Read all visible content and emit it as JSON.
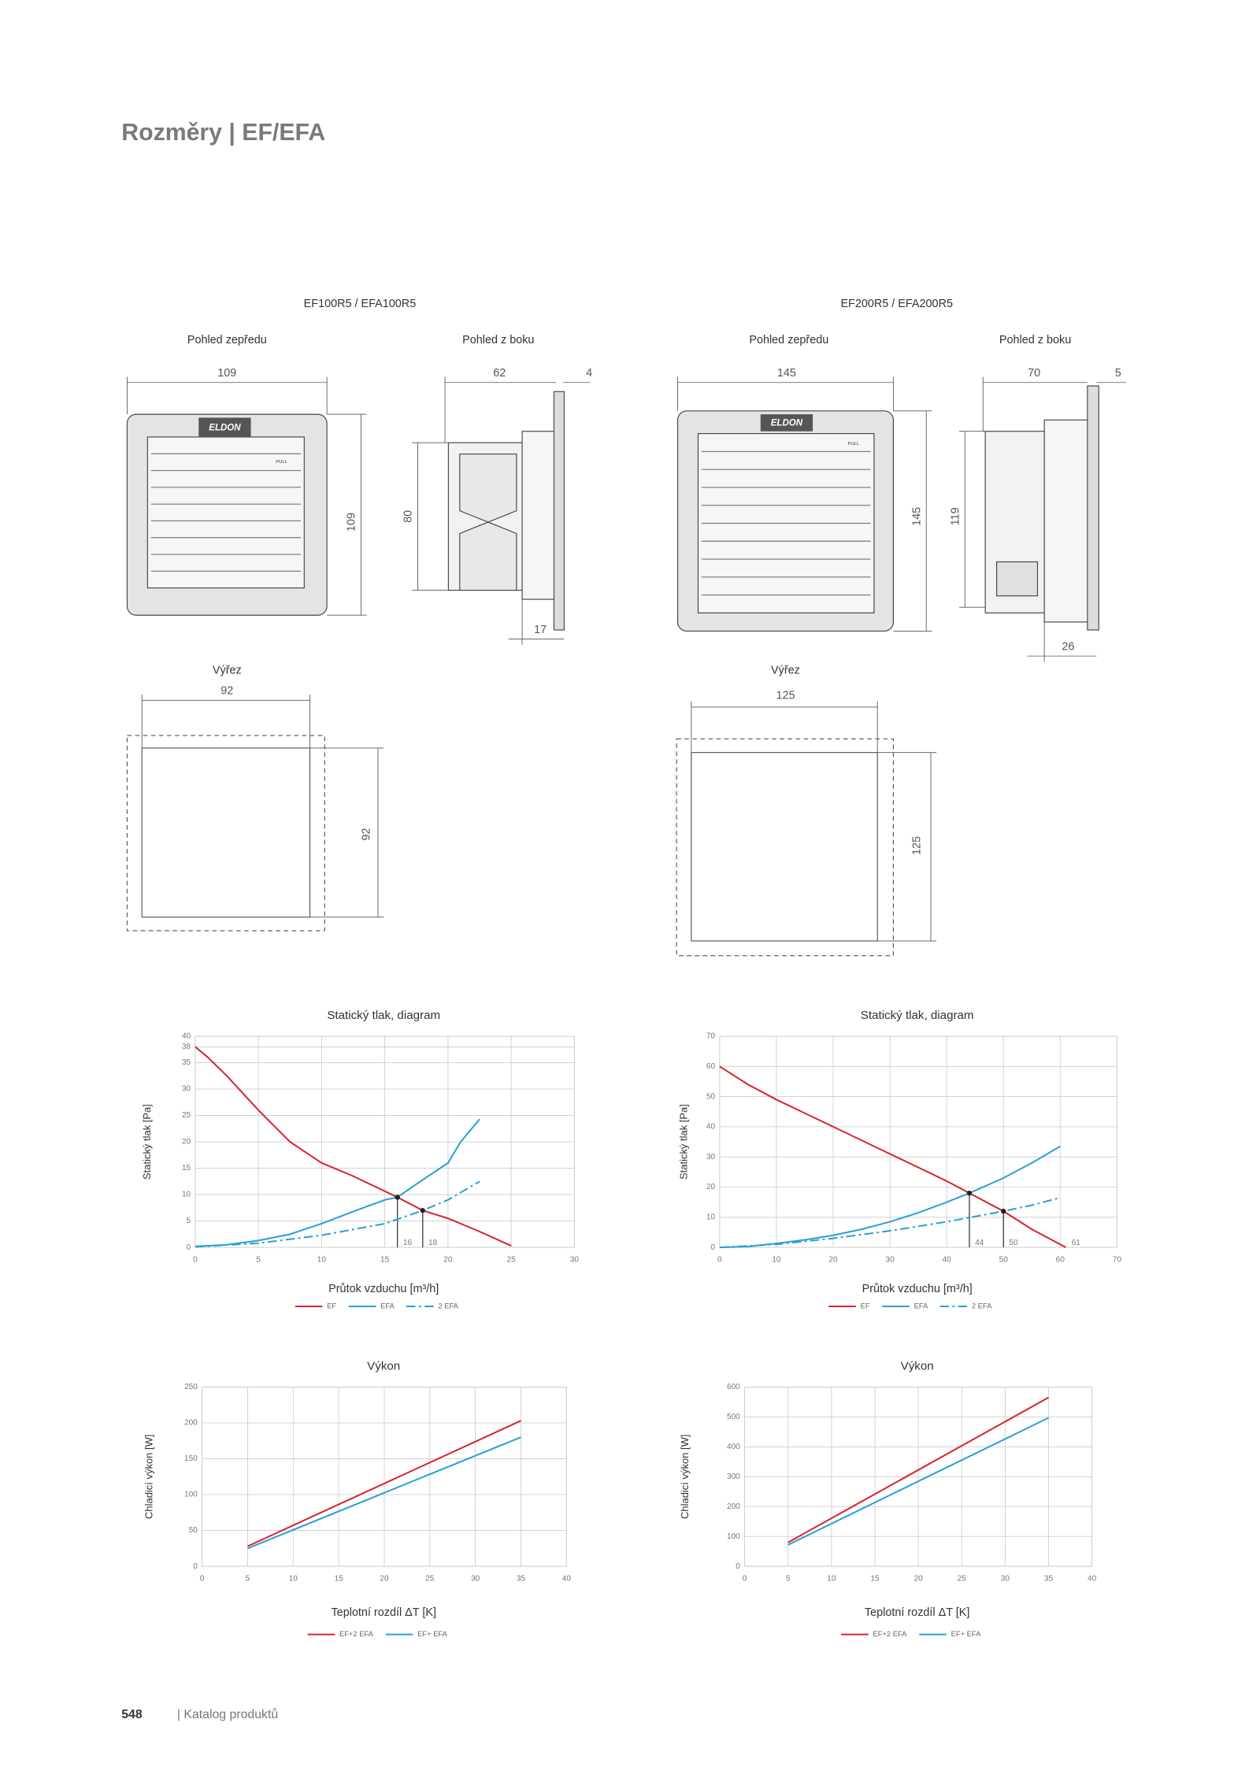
{
  "title": "Rozměry | EF/EFA",
  "products": [
    {
      "name": "EF100R5 / EFA100R5",
      "front_label": "Pohled zepředu",
      "side_label": "Pohled z boku",
      "logo": "ELDON",
      "pull": "PULL",
      "front_width": "109",
      "front_height": "109",
      "side_depth": "62",
      "side_flange": "4",
      "side_height": "80",
      "side_bottom": "17",
      "cutout_label": "Výřez",
      "cutout_width": "92",
      "cutout_height": "92"
    },
    {
      "name": "EF200R5 / EFA200R5",
      "front_label": "Pohled zepředu",
      "side_label": "Pohled z boku",
      "logo": "ELDON",
      "pull": "PULL",
      "front_width": "145",
      "front_height": "145",
      "side_depth": "70",
      "side_flange": "5",
      "side_height": "119",
      "side_bottom": "26",
      "cutout_label": "Výřez",
      "cutout_width": "125",
      "cutout_height": "125"
    }
  ],
  "chart_data": [
    {
      "type": "line",
      "title": "Statický tlak, diagram",
      "x_label": "Průtok vzduchu [m³/h]",
      "y_label": "Statický tlak [Pa]",
      "xlim": [
        0,
        30
      ],
      "xticks": [
        0,
        5,
        10,
        15,
        20,
        25,
        30
      ],
      "ylim": [
        0,
        40
      ],
      "yticks": [
        0,
        5,
        10,
        15,
        20,
        25,
        30,
        35,
        38,
        40
      ],
      "grid": true,
      "legend": "bottom",
      "series": [
        {
          "name": "EF",
          "color": "#d7242e",
          "style": "solid",
          "x": [
            0,
            1,
            2.5,
            5,
            7.5,
            10,
            12.5,
            16,
            18,
            20,
            22.5,
            25
          ],
          "values": [
            38,
            36,
            32.5,
            26,
            20,
            16,
            13.5,
            9.5,
            7,
            5.5,
            3,
            0.3
          ]
        },
        {
          "name": "EFA",
          "color": "#2a9fd8",
          "style": "solid",
          "x": [
            0,
            2.5,
            5,
            7.5,
            10,
            12.5,
            15,
            16,
            17.5,
            20,
            21,
            22.5
          ],
          "values": [
            0.2,
            0.5,
            1.3,
            2.5,
            4.5,
            6.8,
            9,
            9.5,
            12,
            16,
            20,
            24.3
          ]
        },
        {
          "name": "2 EFA",
          "color": "#2a9fd8",
          "style": "dashdot",
          "x": [
            0,
            5,
            10,
            15,
            18,
            20,
            22.5
          ],
          "values": [
            0.1,
            0.8,
            2.3,
            4.5,
            7,
            9,
            12.5
          ]
        }
      ],
      "intersections": [
        {
          "x": 16,
          "y": 9.5
        },
        {
          "x": 18,
          "y": 7
        }
      ]
    },
    {
      "type": "line",
      "title": "Statický tlak, diagram",
      "x_label": "Průtok vzduchu [m³/h]",
      "y_label": "Statický tlak [Pa]",
      "xlim": [
        0,
        70
      ],
      "xticks": [
        0,
        10,
        20,
        30,
        40,
        50,
        60,
        70
      ],
      "ylim": [
        0,
        70
      ],
      "yticks": [
        0,
        10,
        20,
        30,
        40,
        50,
        60,
        70
      ],
      "grid": true,
      "legend": "bottom",
      "series": [
        {
          "name": "EF",
          "color": "#d7242e",
          "style": "solid",
          "x": [
            0,
            5,
            10,
            20,
            30,
            40,
            44,
            50,
            55,
            60,
            61
          ],
          "values": [
            60,
            54,
            49,
            40,
            31,
            22,
            18,
            12,
            6,
            1,
            0
          ]
        },
        {
          "name": "EFA",
          "color": "#2a9fd8",
          "style": "solid",
          "x": [
            0,
            5,
            10,
            15,
            20,
            25,
            30,
            35,
            40,
            44,
            50,
            55,
            60
          ],
          "values": [
            0,
            0.3,
            1.3,
            2.5,
            4,
            6,
            8.5,
            11.5,
            15,
            18,
            23,
            28,
            33.5
          ]
        },
        {
          "name": "2 EFA",
          "color": "#2a9fd8",
          "style": "dashdot",
          "x": [
            0,
            10,
            20,
            30,
            40,
            50,
            55,
            60
          ],
          "values": [
            0,
            1,
            3,
            5.5,
            8.5,
            12,
            14,
            16.5
          ]
        }
      ],
      "intersections": [
        {
          "x": 44,
          "y": 18
        },
        {
          "x": 50,
          "y": 12
        },
        {
          "x": 61,
          "y": 0
        }
      ]
    },
    {
      "type": "line",
      "title": "Výkon",
      "x_label": "Teplotní rozdíl ΔT [K]",
      "y_label": "Chladicí výkon [W]",
      "xlim": [
        0,
        40
      ],
      "xticks": [
        0,
        5,
        10,
        15,
        20,
        25,
        30,
        35,
        40
      ],
      "ylim": [
        0,
        250
      ],
      "yticks": [
        0,
        50,
        100,
        150,
        200,
        250
      ],
      "grid": true,
      "legend": "bottom",
      "series": [
        {
          "name": "EF+2 EFA",
          "color": "#d7242e",
          "style": "solid",
          "x": [
            5,
            35
          ],
          "values": [
            28,
            203
          ]
        },
        {
          "name": "EF+ EFA",
          "color": "#2a9fd8",
          "style": "solid",
          "x": [
            5,
            35
          ],
          "values": [
            25,
            180
          ]
        }
      ]
    },
    {
      "type": "line",
      "title": "Výkon",
      "x_label": "Teplotní rozdíl ΔT [K]",
      "y_label": "Chladicí výkon [W]",
      "xlim": [
        0,
        40
      ],
      "xticks": [
        0,
        5,
        10,
        15,
        20,
        25,
        30,
        35,
        40
      ],
      "ylim": [
        0,
        600
      ],
      "yticks": [
        0,
        100,
        200,
        300,
        400,
        500,
        600
      ],
      "grid": true,
      "legend": "bottom",
      "series": [
        {
          "name": "EF+2 EFA",
          "color": "#d7242e",
          "style": "solid",
          "x": [
            5,
            35
          ],
          "values": [
            80,
            565
          ]
        },
        {
          "name": "EF+ EFA",
          "color": "#2a9fd8",
          "style": "solid",
          "x": [
            5,
            35
          ],
          "values": [
            72,
            497
          ]
        }
      ]
    }
  ],
  "footer": {
    "page": "548",
    "text": "| Katalog produktů"
  }
}
